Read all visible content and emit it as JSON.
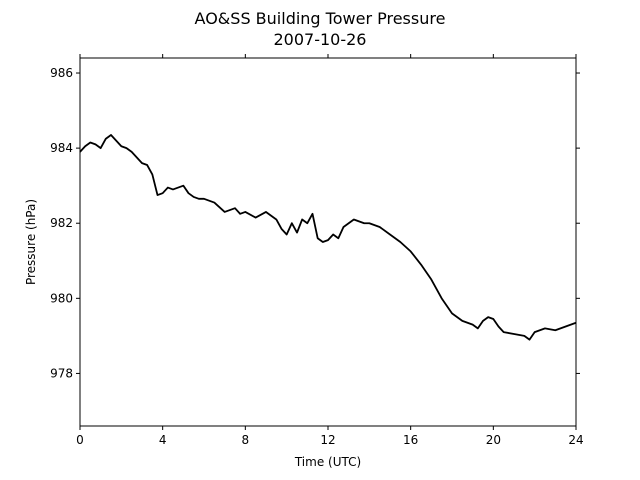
{
  "chart_data": {
    "type": "line",
    "title": "AO&SS Building Tower Pressure",
    "subtitle": "2007-10-26",
    "xlabel": "Time (UTC)",
    "ylabel": "Pressure (hPa)",
    "xlim": [
      0,
      24
    ],
    "ylim": [
      976.6,
      986.4
    ],
    "xticks": [
      0,
      4,
      8,
      12,
      16,
      20,
      24
    ],
    "yticks": [
      978,
      980,
      982,
      984,
      986
    ],
    "grid": false,
    "line_color": "#000000",
    "series": [
      {
        "x": [
          0,
          0.25,
          0.5,
          0.75,
          1.0,
          1.25,
          1.5,
          1.75,
          2.0,
          2.25,
          2.5,
          2.75,
          3.0,
          3.25,
          3.5,
          3.75,
          4.0,
          4.25,
          4.5,
          4.75,
          5.0,
          5.25,
          5.5,
          5.75,
          6.0,
          6.5,
          7.0,
          7.5,
          7.75,
          8.0,
          8.5,
          9.0,
          9.5,
          9.75,
          10.0,
          10.25,
          10.5,
          10.75,
          11.0,
          11.25,
          11.5,
          11.75,
          12.0,
          12.25,
          12.5,
          12.75,
          13.0,
          13.25,
          13.5,
          13.75,
          14.0,
          14.5,
          15.0,
          15.5,
          16.0,
          16.5,
          17.0,
          17.5,
          18.0,
          18.5,
          19.0,
          19.25,
          19.5,
          19.75,
          20.0,
          20.25,
          20.5,
          21.0,
          21.5,
          21.75,
          22.0,
          22.25,
          22.5,
          23.0,
          23.5,
          24.0
        ],
        "values": [
          983.9,
          984.05,
          984.15,
          984.1,
          984.0,
          984.25,
          984.35,
          984.2,
          984.05,
          984.0,
          983.9,
          983.75,
          983.6,
          983.55,
          983.3,
          982.75,
          982.8,
          982.95,
          982.9,
          982.95,
          983.0,
          982.8,
          982.7,
          982.65,
          982.65,
          982.55,
          982.3,
          982.4,
          982.25,
          982.3,
          982.15,
          982.3,
          982.1,
          981.85,
          981.7,
          982.0,
          981.75,
          982.1,
          982.0,
          982.25,
          981.6,
          981.5,
          981.55,
          981.7,
          981.6,
          981.9,
          982.0,
          982.1,
          982.05,
          982.0,
          982.0,
          981.9,
          981.7,
          981.5,
          981.25,
          980.9,
          980.5,
          980.0,
          979.6,
          979.4,
          979.3,
          979.2,
          979.4,
          979.5,
          979.45,
          979.25,
          979.1,
          979.05,
          979.0,
          978.9,
          979.1,
          979.15,
          979.2,
          979.15,
          979.25,
          979.35
        ]
      }
    ]
  }
}
